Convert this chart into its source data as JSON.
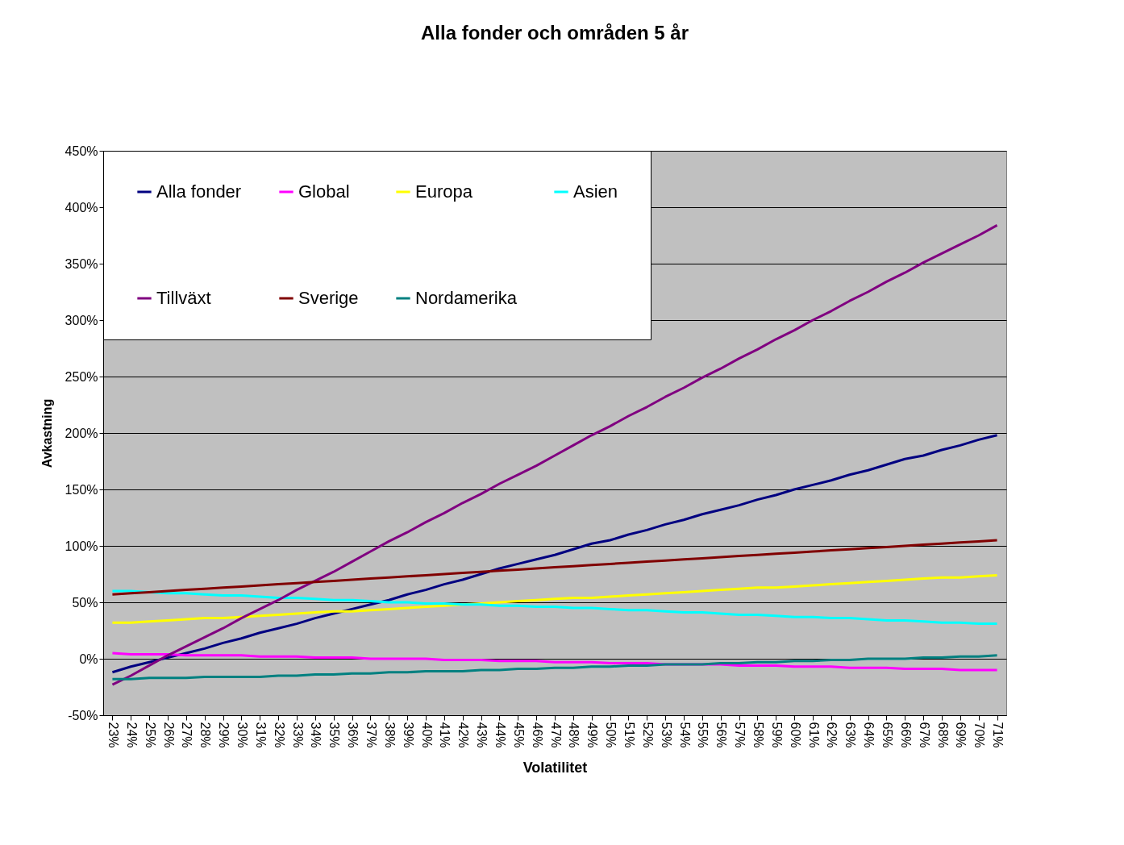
{
  "chart_data": {
    "type": "line",
    "title": "Alla fonder och områden 5 år",
    "xlabel": "Volatilitet",
    "ylabel": "Avkastning",
    "categories": [
      "23%",
      "24%",
      "25%",
      "26%",
      "27%",
      "28%",
      "29%",
      "30%",
      "31%",
      "32%",
      "33%",
      "34%",
      "35%",
      "36%",
      "37%",
      "38%",
      "39%",
      "40%",
      "41%",
      "42%",
      "43%",
      "44%",
      "45%",
      "46%",
      "47%",
      "48%",
      "49%",
      "50%",
      "51%",
      "52%",
      "53%",
      "54%",
      "55%",
      "56%",
      "57%",
      "58%",
      "59%",
      "60%",
      "61%",
      "62%",
      "63%",
      "64%",
      "65%",
      "66%",
      "67%",
      "68%",
      "69%",
      "70%",
      "71%"
    ],
    "series": [
      {
        "name": "Alla fonder",
        "color": "#000080",
        "values": [
          -12,
          -7,
          -3,
          1,
          5,
          9,
          14,
          18,
          23,
          27,
          31,
          36,
          40,
          44,
          48,
          52,
          57,
          61,
          66,
          70,
          75,
          80,
          84,
          88,
          92,
          97,
          102,
          105,
          110,
          114,
          119,
          123,
          128,
          132,
          136,
          141,
          145,
          150,
          154,
          158,
          163,
          167,
          172,
          177,
          180,
          185,
          189,
          194,
          198
        ]
      },
      {
        "name": "Global",
        "color": "#ff00ff",
        "values": [
          5,
          4,
          4,
          4,
          3,
          3,
          3,
          3,
          2,
          2,
          2,
          1,
          1,
          1,
          0,
          0,
          0,
          0,
          -1,
          -1,
          -1,
          -2,
          -2,
          -2,
          -3,
          -3,
          -3,
          -4,
          -4,
          -4,
          -5,
          -5,
          -5,
          -5,
          -6,
          -6,
          -6,
          -7,
          -7,
          -7,
          -8,
          -8,
          -8,
          -9,
          -9,
          -9,
          -10,
          -10,
          -10
        ]
      },
      {
        "name": "Europa",
        "color": "#ffff00",
        "values": [
          32,
          32,
          33,
          34,
          35,
          36,
          36,
          37,
          38,
          39,
          40,
          41,
          42,
          42,
          43,
          44,
          45,
          46,
          47,
          48,
          49,
          50,
          51,
          52,
          53,
          54,
          54,
          55,
          56,
          57,
          58,
          59,
          60,
          61,
          62,
          63,
          63,
          64,
          65,
          66,
          67,
          68,
          69,
          70,
          71,
          72,
          72,
          73,
          74
        ]
      },
      {
        "name": "Asien",
        "color": "#00ffff",
        "values": [
          60,
          60,
          59,
          58,
          58,
          57,
          56,
          56,
          55,
          54,
          54,
          53,
          52,
          52,
          51,
          50,
          50,
          49,
          49,
          48,
          48,
          47,
          47,
          46,
          46,
          45,
          45,
          44,
          43,
          43,
          42,
          41,
          41,
          40,
          39,
          39,
          38,
          37,
          37,
          36,
          36,
          35,
          34,
          34,
          33,
          32,
          32,
          31,
          31
        ]
      },
      {
        "name": "Tillväxt",
        "color": "#800080",
        "values": [
          -23,
          -15,
          -6,
          3,
          11,
          19,
          27,
          36,
          44,
          52,
          61,
          69,
          77,
          86,
          95,
          104,
          112,
          121,
          129,
          138,
          146,
          155,
          163,
          171,
          180,
          189,
          198,
          206,
          215,
          223,
          232,
          240,
          249,
          257,
          266,
          274,
          283,
          291,
          300,
          308,
          317,
          325,
          334,
          342,
          351,
          359,
          367,
          375,
          384
        ]
      },
      {
        "name": "Sverige",
        "color": "#800000",
        "values": [
          57,
          58,
          59,
          60,
          61,
          62,
          63,
          64,
          65,
          66,
          67,
          68,
          69,
          70,
          71,
          72,
          73,
          74,
          75,
          76,
          77,
          78,
          79,
          80,
          81,
          82,
          83,
          84,
          85,
          86,
          87,
          88,
          89,
          90,
          91,
          92,
          93,
          94,
          95,
          96,
          97,
          98,
          99,
          100,
          101,
          102,
          103,
          104,
          105
        ]
      },
      {
        "name": "Nordamerika",
        "color": "#008080",
        "values": [
          -18,
          -18,
          -17,
          -17,
          -17,
          -16,
          -16,
          -16,
          -16,
          -15,
          -15,
          -14,
          -14,
          -13,
          -13,
          -12,
          -12,
          -11,
          -11,
          -11,
          -10,
          -10,
          -9,
          -9,
          -8,
          -8,
          -7,
          -7,
          -6,
          -6,
          -5,
          -5,
          -5,
          -4,
          -4,
          -3,
          -3,
          -2,
          -2,
          -1,
          -1,
          0,
          0,
          0,
          1,
          1,
          2,
          2,
          3
        ]
      }
    ],
    "ylim": [
      -50,
      450
    ],
    "yticks": [
      {
        "value": -50,
        "label": "-50%"
      },
      {
        "value": 0,
        "label": "0%"
      },
      {
        "value": 50,
        "label": "50%"
      },
      {
        "value": 100,
        "label": "100%"
      },
      {
        "value": 150,
        "label": "150%"
      },
      {
        "value": 200,
        "label": "200%"
      },
      {
        "value": 250,
        "label": "250%"
      },
      {
        "value": 300,
        "label": "300%"
      },
      {
        "value": 350,
        "label": "350%"
      },
      {
        "value": 400,
        "label": "400%"
      },
      {
        "value": 450,
        "label": "450%"
      }
    ],
    "grid": "y",
    "legend": "top left",
    "marker": "none",
    "line_style": "solid"
  }
}
